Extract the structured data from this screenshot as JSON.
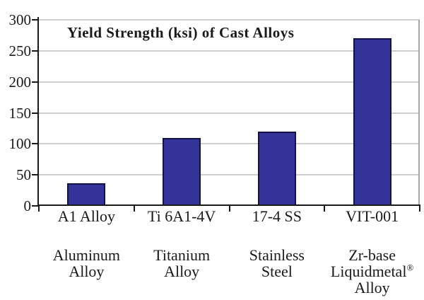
{
  "chart_data": {
    "type": "bar",
    "title": "Yield Strength (ksi) of Cast Alloys",
    "categories": [
      "A1 Alloy",
      "Ti 6A1-4V",
      "17-4 SS",
      "VIT-001"
    ],
    "category_sublabels": [
      [
        "Aluminum",
        "Alloy"
      ],
      [
        "Titanium",
        "Alloy"
      ],
      [
        "Stainless",
        "Steel"
      ],
      [
        "Zr-base",
        "Liquidmetal®",
        "Alloy"
      ]
    ],
    "values": [
      37,
      110,
      120,
      270
    ],
    "xlabel": "",
    "ylabel": "",
    "ylim": [
      0,
      300
    ],
    "yticks": [
      0,
      50,
      100,
      150,
      200,
      250,
      300
    ],
    "grid": true,
    "legend": "none",
    "colors": {
      "bar_fill": "#333399",
      "bar_border": "#13134a",
      "gridline": "#cfcfcf",
      "axis": "#1a1a1a",
      "plot_right_border": "#a8a8a8",
      "background": "#ffffff"
    }
  }
}
